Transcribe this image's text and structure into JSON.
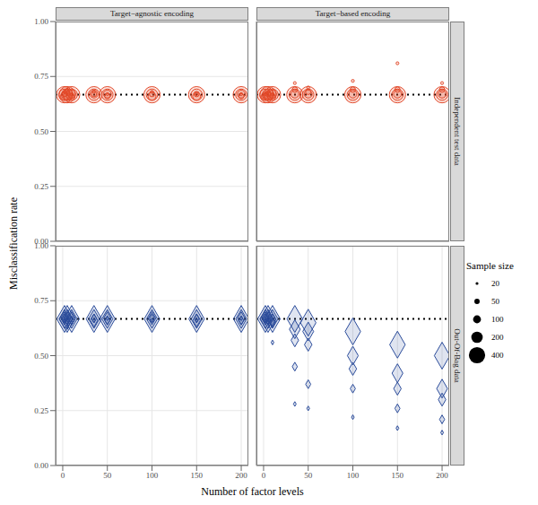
{
  "chart_data": {
    "type": "scatter",
    "x_label": "Number of factor levels",
    "y_label": "Misclassification rate",
    "xlim": [
      -8,
      208
    ],
    "xticks": [
      0,
      50,
      100,
      150,
      200
    ],
    "ylim": [
      0,
      1
    ],
    "yticks": [
      {
        "value": 0,
        "label": "0.00"
      },
      {
        "value": 0.25,
        "label": "0.25"
      },
      {
        "value": 0.5,
        "label": "0.50"
      },
      {
        "value": 0.75,
        "label": "0.75"
      },
      {
        "value": 1,
        "label": "1.00"
      }
    ],
    "grid": true,
    "hline": 0.667,
    "size_legend": {
      "title": "Sample size",
      "values": [
        20,
        50,
        100,
        200,
        400
      ]
    },
    "columns": [
      "Target−agnostic encoding",
      "Target−based encoding"
    ],
    "rows": [
      {
        "label": "Independent test data",
        "color": "#e34a2b",
        "marker": "circle"
      },
      {
        "label": "Out-Of-Bag data",
        "color": "#2b4c9b",
        "marker": "diamond"
      }
    ],
    "panels": [
      {
        "row": 0,
        "col": 0,
        "x": [
          2,
          2,
          2,
          2,
          2,
          5,
          5,
          5,
          5,
          5,
          10,
          10,
          10,
          10,
          10,
          35,
          35,
          35,
          35,
          35,
          50,
          50,
          50,
          50,
          50,
          100,
          100,
          100,
          100,
          100,
          150,
          150,
          150,
          150,
          150,
          200,
          200,
          200,
          200,
          200
        ],
        "size": [
          20,
          50,
          100,
          200,
          400,
          20,
          50,
          100,
          200,
          400,
          20,
          50,
          100,
          200,
          400,
          20,
          50,
          100,
          200,
          400,
          20,
          50,
          100,
          200,
          400,
          20,
          50,
          100,
          200,
          400,
          20,
          50,
          100,
          200,
          400,
          20,
          50,
          100,
          200,
          400
        ],
        "y": [
          0.68,
          0.67,
          0.66,
          0.667,
          0.667,
          0.69,
          0.68,
          0.66,
          0.667,
          0.667,
          0.67,
          0.66,
          0.67,
          0.667,
          0.667,
          0.68,
          0.67,
          0.67,
          0.667,
          0.667,
          0.67,
          0.66,
          0.67,
          0.667,
          0.667,
          0.68,
          0.67,
          0.66,
          0.667,
          0.667,
          0.67,
          0.67,
          0.66,
          0.667,
          0.667,
          0.67,
          0.66,
          0.67,
          0.667,
          0.667
        ]
      },
      {
        "row": 0,
        "col": 1,
        "x": [
          2,
          2,
          2,
          2,
          2,
          5,
          5,
          5,
          5,
          5,
          10,
          10,
          10,
          10,
          10,
          35,
          35,
          35,
          35,
          35,
          50,
          50,
          50,
          50,
          50,
          100,
          100,
          100,
          100,
          100,
          150,
          150,
          150,
          150,
          150,
          200,
          200,
          200,
          200,
          200
        ],
        "size": [
          20,
          50,
          100,
          200,
          400,
          20,
          50,
          100,
          200,
          400,
          20,
          50,
          100,
          200,
          400,
          20,
          50,
          100,
          200,
          400,
          20,
          50,
          100,
          200,
          400,
          20,
          50,
          100,
          200,
          400,
          20,
          50,
          100,
          200,
          400,
          20,
          50,
          100,
          200,
          400
        ],
        "y": [
          0.67,
          0.66,
          0.66,
          0.667,
          0.667,
          0.68,
          0.67,
          0.66,
          0.667,
          0.667,
          0.67,
          0.66,
          0.67,
          0.667,
          0.667,
          0.72,
          0.69,
          0.67,
          0.667,
          0.667,
          0.7,
          0.68,
          0.67,
          0.667,
          0.667,
          0.73,
          0.69,
          0.67,
          0.667,
          0.667,
          0.81,
          0.69,
          0.67,
          0.667,
          0.667,
          0.72,
          0.69,
          0.67,
          0.667,
          0.667
        ]
      },
      {
        "row": 1,
        "col": 0,
        "x": [
          2,
          2,
          2,
          2,
          2,
          5,
          5,
          5,
          5,
          5,
          10,
          10,
          10,
          10,
          10,
          35,
          35,
          35,
          35,
          35,
          50,
          50,
          50,
          50,
          50,
          100,
          100,
          100,
          100,
          100,
          150,
          150,
          150,
          150,
          150,
          200,
          200,
          200,
          200,
          200
        ],
        "size": [
          20,
          50,
          100,
          200,
          400,
          20,
          50,
          100,
          200,
          400,
          20,
          50,
          100,
          200,
          400,
          20,
          50,
          100,
          200,
          400,
          20,
          50,
          100,
          200,
          400,
          20,
          50,
          100,
          200,
          400,
          20,
          50,
          100,
          200,
          400,
          20,
          50,
          100,
          200,
          400
        ],
        "y": [
          0.66,
          0.67,
          0.67,
          0.667,
          0.667,
          0.63,
          0.66,
          0.67,
          0.667,
          0.667,
          0.65,
          0.66,
          0.67,
          0.667,
          0.667,
          0.66,
          0.67,
          0.66,
          0.667,
          0.667,
          0.67,
          0.66,
          0.67,
          0.667,
          0.667,
          0.66,
          0.67,
          0.67,
          0.667,
          0.667,
          0.66,
          0.67,
          0.66,
          0.667,
          0.667,
          0.67,
          0.66,
          0.67,
          0.667,
          0.667
        ]
      },
      {
        "row": 1,
        "col": 1,
        "x": [
          2,
          2,
          2,
          2,
          2,
          5,
          5,
          5,
          5,
          5,
          10,
          10,
          10,
          10,
          10,
          35,
          35,
          35,
          35,
          35,
          50,
          50,
          50,
          50,
          50,
          100,
          100,
          100,
          100,
          100,
          150,
          150,
          150,
          150,
          150,
          200,
          200,
          200,
          200,
          200
        ],
        "size": [
          20,
          50,
          100,
          200,
          400,
          20,
          50,
          100,
          200,
          400,
          20,
          50,
          100,
          200,
          400,
          20,
          50,
          100,
          200,
          400,
          20,
          50,
          100,
          200,
          400,
          20,
          50,
          100,
          200,
          400,
          20,
          50,
          100,
          200,
          400,
          20,
          50,
          100,
          200,
          400
        ],
        "y": [
          0.66,
          0.67,
          0.67,
          0.667,
          0.667,
          0.65,
          0.66,
          0.67,
          0.667,
          0.667,
          0.56,
          0.65,
          0.66,
          0.667,
          0.667,
          0.28,
          0.45,
          0.57,
          0.62,
          0.667,
          0.26,
          0.37,
          0.55,
          0.61,
          0.65,
          0.22,
          0.35,
          0.44,
          0.5,
          0.61,
          0.17,
          0.26,
          0.35,
          0.42,
          0.55,
          0.15,
          0.21,
          0.3,
          0.35,
          0.5
        ]
      }
    ]
  }
}
